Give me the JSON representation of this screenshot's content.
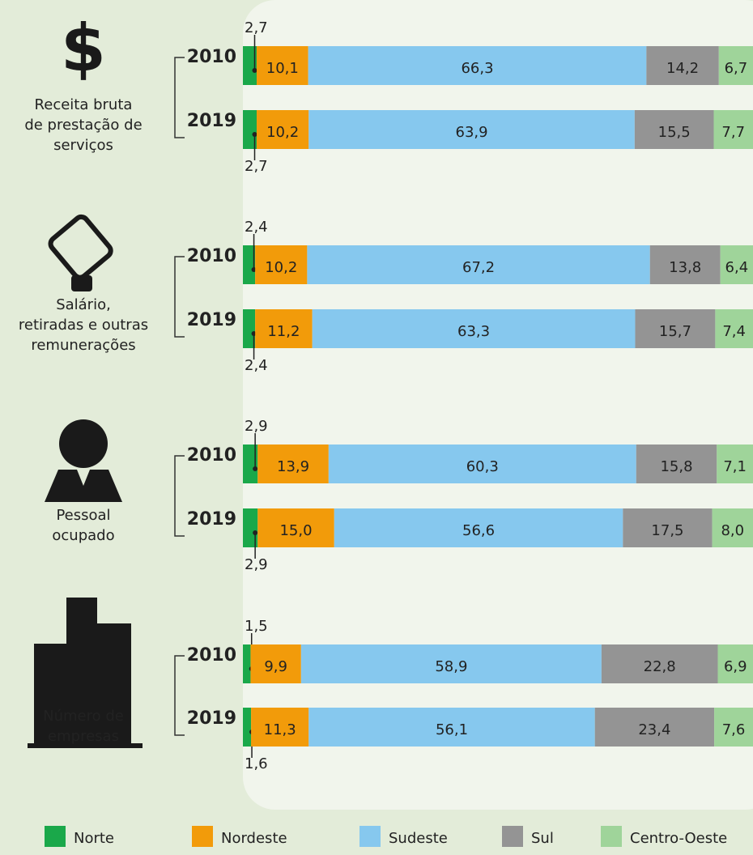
{
  "chart_data": {
    "type": "stacked-barh",
    "group_labels": [
      [
        "Receita bruta",
        "de prestação de",
        "serviços"
      ],
      [
        "Salário,",
        "retiradas e outras",
        "remunerações"
      ],
      [
        "Pessoal",
        "ocupado"
      ],
      [
        "Número de",
        "empresas"
      ]
    ],
    "categories": [
      "2010",
      "2019",
      "2010",
      "2019",
      "2010",
      "2019",
      "2010",
      "2019"
    ],
    "xlim": [
      0,
      100
    ],
    "series": [
      {
        "name": "Norte",
        "color": "#1aa84a",
        "values": [
          2.7,
          2.7,
          2.4,
          2.4,
          2.9,
          2.9,
          1.5,
          1.6
        ],
        "value_labels": [
          "2,7",
          "2,7",
          "2,4",
          "2,4",
          "2,9",
          "2,9",
          "1,5",
          "1,6"
        ]
      },
      {
        "name": "Nordeste",
        "color": "#f29b0a",
        "values": [
          10.1,
          10.2,
          10.2,
          11.2,
          13.9,
          15.0,
          9.9,
          11.3
        ],
        "value_labels": [
          "10,1",
          "10,2",
          "10,2",
          "11,2",
          "13,9",
          "15,0",
          "9,9",
          "11,3"
        ]
      },
      {
        "name": "Sudeste",
        "color": "#86c8ee",
        "values": [
          66.3,
          63.9,
          67.2,
          63.3,
          60.3,
          56.6,
          58.9,
          56.1
        ],
        "value_labels": [
          "66,3",
          "63,9",
          "67,2",
          "63,3",
          "60,3",
          "56,6",
          "58,9",
          "56,1"
        ]
      },
      {
        "name": "Sul",
        "color": "#949494",
        "values": [
          14.2,
          15.5,
          13.8,
          15.7,
          15.8,
          17.5,
          22.8,
          23.4
        ],
        "value_labels": [
          "14,2",
          "15,5",
          "13,8",
          "15,7",
          "15,8",
          "17,5",
          "22,8",
          "23,4"
        ]
      },
      {
        "name": "Centro-Oeste",
        "color": "#9fd49a",
        "values": [
          6.7,
          7.7,
          6.4,
          7.4,
          7.1,
          8.0,
          6.9,
          7.6
        ],
        "value_labels": [
          "6,7",
          "7,7",
          "6,4",
          "7,4",
          "7,1",
          "8,0",
          "6,9",
          "7,6"
        ]
      }
    ]
  }
}
